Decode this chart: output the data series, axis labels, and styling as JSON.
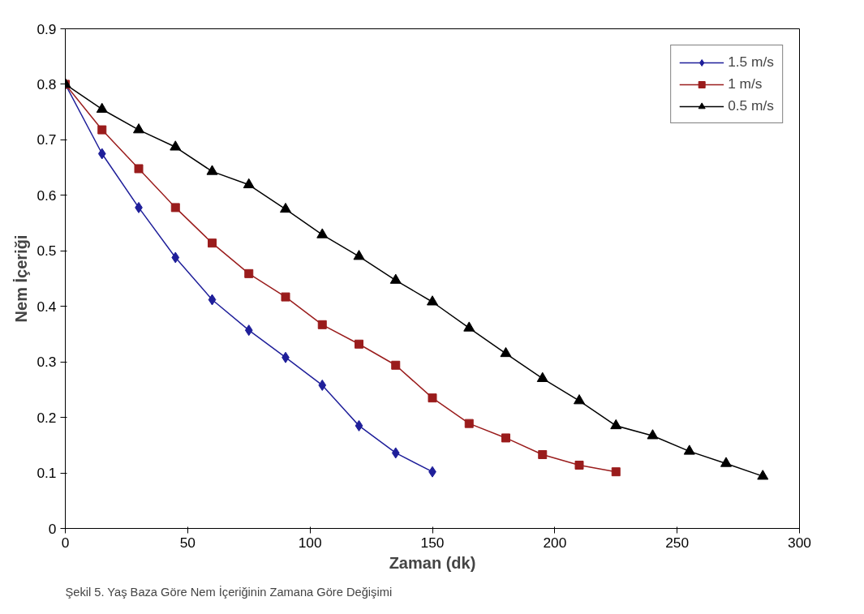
{
  "chart_data": {
    "type": "line",
    "xlabel": "Zaman (dk)",
    "ylabel": "Nem İçeriği",
    "annotations": [
      "Şekil 5. Yaş Baza Göre Nem İçeriğinin Zamana Göre Değişimi"
    ],
    "xlim": [
      0,
      300
    ],
    "xticks": [
      0,
      50,
      100,
      150,
      200,
      250,
      300
    ],
    "ylim": [
      0,
      0.9
    ],
    "yticks": [
      0,
      0.1,
      0.2,
      0.3,
      0.4,
      0.5,
      0.6,
      0.7,
      0.8,
      0.9
    ],
    "grid": false,
    "legend": "top right",
    "line_style": "solid",
    "series": [
      {
        "name": "1.5 m/s",
        "color": "#1f1f9a",
        "marker": "diamond",
        "x": [
          0,
          15,
          30,
          45,
          60,
          75,
          90,
          105,
          120,
          135,
          150
        ],
        "values": [
          0.8,
          0.675,
          0.578,
          0.488,
          0.412,
          0.357,
          0.308,
          0.258,
          0.185,
          0.136,
          0.102
        ]
      },
      {
        "name": "1 m/s",
        "color": "#9a1c1c",
        "marker": "square",
        "x": [
          0,
          15,
          30,
          45,
          60,
          75,
          90,
          105,
          120,
          135,
          150,
          165,
          180,
          195,
          210,
          225
        ],
        "values": [
          0.8,
          0.718,
          0.648,
          0.578,
          0.514,
          0.459,
          0.417,
          0.367,
          0.332,
          0.294,
          0.235,
          0.189,
          0.163,
          0.133,
          0.114,
          0.102
        ]
      },
      {
        "name": "0.5 m/s",
        "color": "#000000",
        "marker": "triangle",
        "x": [
          0,
          15,
          30,
          45,
          60,
          75,
          90,
          105,
          120,
          135,
          150,
          165,
          180,
          195,
          210,
          225,
          240,
          255,
          270,
          285
        ],
        "values": [
          0.8,
          0.755,
          0.718,
          0.687,
          0.643,
          0.619,
          0.575,
          0.529,
          0.49,
          0.447,
          0.408,
          0.361,
          0.315,
          0.27,
          0.23,
          0.185,
          0.167,
          0.139,
          0.117,
          0.094
        ]
      }
    ]
  }
}
